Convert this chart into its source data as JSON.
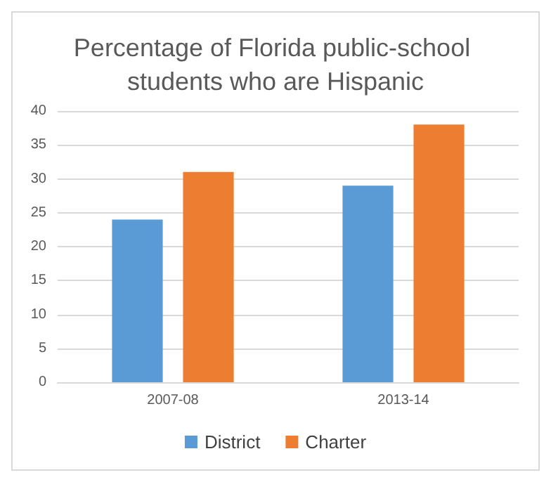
{
  "chart_data": {
    "type": "bar",
    "title": "Percentage of Florida public-school students who are Hispanic",
    "categories": [
      "2007-08",
      "2013-14"
    ],
    "series": [
      {
        "name": "District",
        "color": "#5b9bd5",
        "values": [
          24,
          29
        ]
      },
      {
        "name": "Charter",
        "color": "#ed7d31",
        "values": [
          31,
          38
        ]
      }
    ],
    "ylim": [
      0,
      40
    ],
    "yticks": [
      0,
      5,
      10,
      15,
      20,
      25,
      30,
      35,
      40
    ],
    "grid": "y",
    "legend": "bottom"
  }
}
